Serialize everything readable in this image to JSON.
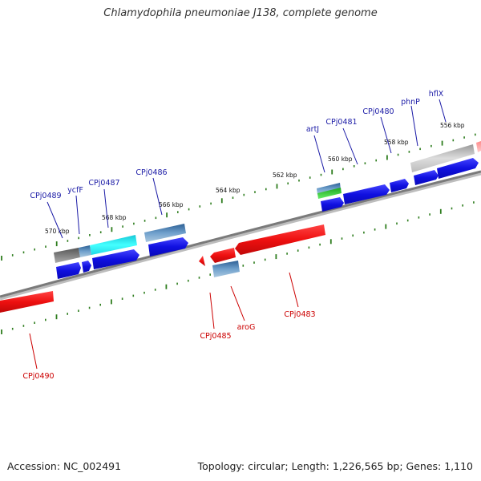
{
  "title": "Chlamydophila pneumoniae J138, complete genome",
  "footer": {
    "accession": "Accession: NC_002491",
    "summary": "Topology: circular; Length: 1,226,565 bp; Genes: 1,110"
  },
  "colors": {
    "forward_label": "#1a1aa6",
    "reverse_label": "#cc0000",
    "forward_gene": "#1414e6",
    "reverse_gene": "#e61414",
    "tick": "#2e7d1e",
    "backbone": "#888888"
  },
  "scale_ticks": [
    "570 kbp",
    "568 kbp",
    "566 kbp",
    "564 kbp",
    "562 kbp",
    "560 kbp",
    "558 kbp",
    "556 kbp"
  ],
  "forward_genes": [
    "hflX",
    "phnP",
    "CPj0480",
    "CPj0481",
    "artJ",
    "CPj0486",
    "CPj0487",
    "ycfF",
    "CPj0489"
  ],
  "reverse_genes": [
    "CPj0483",
    "aroG",
    "CPj0485",
    "CPj0490"
  ]
}
